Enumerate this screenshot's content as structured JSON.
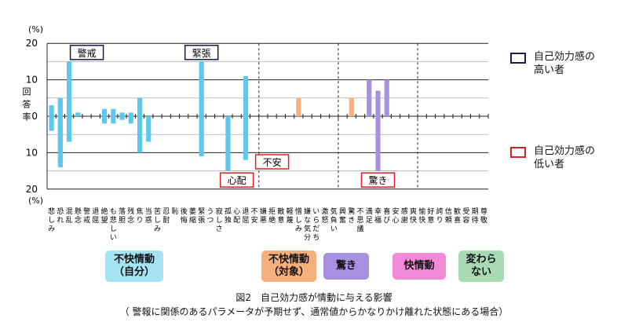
{
  "chart_data": {
    "type": "bar",
    "unit_top": "(%)",
    "unit_bottom": "(%)",
    "ylabel": "回答率",
    "ylim": [
      -20,
      20
    ],
    "y_ticks": [
      20,
      10,
      0,
      10,
      20
    ],
    "categories": [
      "悲しみ",
      "恐れ",
      "混乱",
      "懸念",
      "警戒",
      "退屈",
      "絶望",
      "も悲しい",
      "落胆",
      "残念",
      "焦り",
      "当惑",
      "苦しみ",
      "忍耐",
      "恥",
      "後悔",
      "萎縮",
      "緊張",
      "うつ",
      "寂しさ",
      "孤独",
      "心配",
      "退屈",
      "不安",
      "嫌悪",
      "拒絶",
      "敵意",
      "軽蔑",
      "憎しみ",
      "嫌な気分",
      "いらだち",
      "激怒",
      "気負い",
      "興奮",
      "驚き",
      "不思議",
      "満足",
      "幸福",
      "喜び",
      "安心",
      "感謝",
      "爽快",
      "愉快",
      "好意",
      "誇り",
      "信頼",
      "歓喜",
      "受容",
      "期待",
      "尊敬"
    ],
    "series": [
      {
        "name": "自己効力感の高い者",
        "color": "#5bc8ee",
        "values": [
          3,
          5,
          15,
          1,
          0,
          0,
          2,
          2,
          1,
          1,
          5,
          0,
          0,
          0,
          0,
          0,
          0,
          15,
          0,
          0,
          0,
          0,
          11,
          0,
          0,
          0,
          0,
          0,
          0,
          0,
          0,
          0,
          0,
          0,
          0,
          0,
          0,
          0,
          0,
          0,
          0,
          0,
          0,
          0,
          0,
          0,
          0,
          0,
          0,
          0
        ]
      },
      {
        "name": "自己効力感の低い者",
        "color": "#5bc8ee",
        "values": [
          -4,
          -14,
          -7,
          0,
          0,
          0,
          -2,
          -2,
          -1,
          -2,
          -10,
          -7,
          0,
          0,
          0,
          0,
          0,
          -11,
          0,
          0,
          -15,
          0,
          -12,
          0,
          0,
          0,
          0,
          0,
          0,
          0,
          0,
          0,
          0,
          0,
          0,
          0,
          0,
          0,
          0,
          0,
          0,
          0,
          0,
          0,
          0,
          0,
          0,
          0,
          0,
          0
        ]
      }
    ],
    "orange_bars": [
      {
        "index": 28,
        "value": 5
      },
      {
        "index": 34,
        "value": 5
      }
    ],
    "purple_bars": [
      {
        "index": 36,
        "value": 10
      },
      {
        "index": 37,
        "value": 7
      },
      {
        "index": 37,
        "value": -15
      },
      {
        "index": 38,
        "value": 10
      }
    ],
    "annotations": [
      "警戒",
      "緊張",
      "心配",
      "不安",
      "驚き"
    ],
    "grid": true
  },
  "category_labels": [
    "悲しみ",
    "恐れ",
    "混乱",
    "懸念",
    "警戒",
    "退屈",
    "絶望",
    "も悲しい",
    "落胆",
    "残念",
    "焦り",
    "当惑",
    "苦しみ",
    "忍耐",
    "恥",
    "後悔",
    "萎縮",
    "緊張",
    "うつ",
    "寂しさ",
    "孤独",
    "心配",
    "退屈",
    "不安",
    "嫌悪",
    "拒絶",
    "敵意",
    "軽蔑",
    "憎しみ",
    "嫌な気分",
    "いらだち",
    "激怒",
    "気負い",
    "興奮",
    "驚き",
    "不思議",
    "満足",
    "幸福",
    "喜び",
    "安心",
    "感謝",
    "爽快",
    "愉快",
    "好意",
    "誇り",
    "信頼",
    "歓喜",
    "受容",
    "期待",
    "尊敬"
  ],
  "legend": {
    "high": {
      "label": "自己効力感の\n高い者",
      "color": "#1a1a4a"
    },
    "low": {
      "label": "自己効力感の\n低い者",
      "color": "#e02020"
    }
  },
  "groups": [
    {
      "label": "不快情動\n（自分）",
      "color": "#a6e3f2"
    },
    {
      "label": "不快情動\n（対象）",
      "color": "#f6b07e"
    },
    {
      "label": "驚き",
      "color": "#a890e0"
    },
    {
      "label": "快情動",
      "color": "#f08ad6"
    },
    {
      "label": "変わら\nない",
      "color": "#a8dbb4"
    }
  ],
  "caption": {
    "line1": "図2　自己効力感が情動に与える影響",
    "line2": "（ 警報に関係のあるパラメータが予期せず、通常値からかなりかけ離れた状態にある場合）"
  }
}
